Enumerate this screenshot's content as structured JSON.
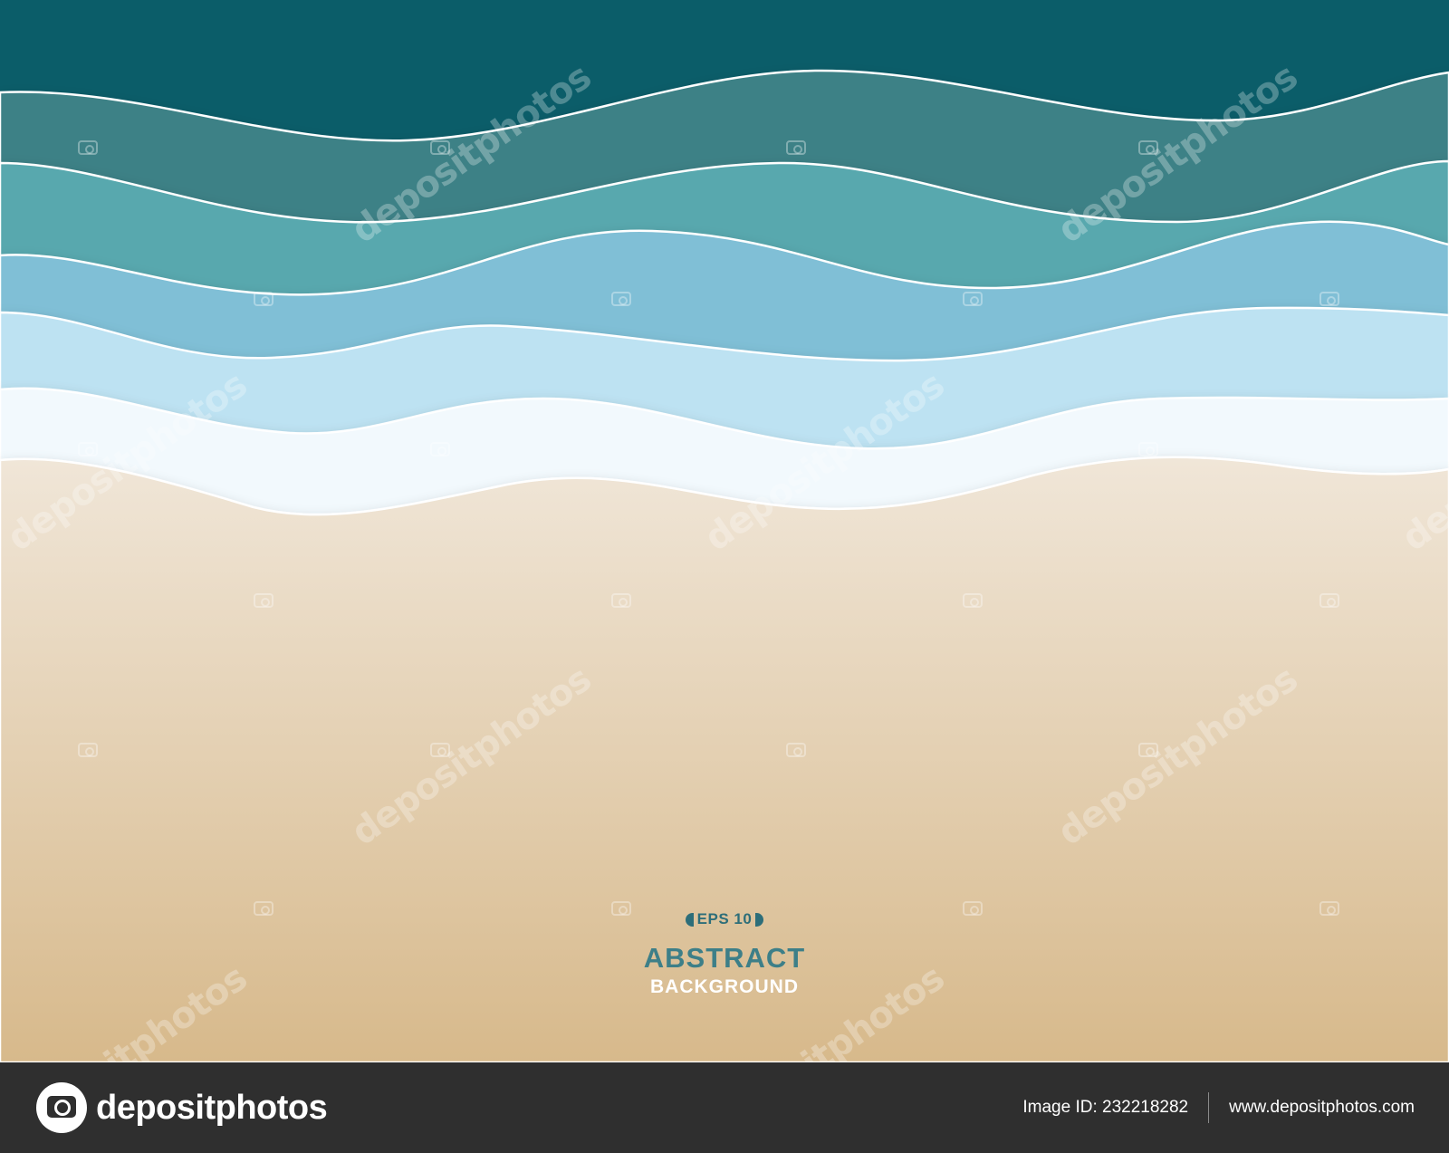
{
  "artwork": {
    "caption": {
      "badge": "EPS 10",
      "title": "ABSTRACT",
      "subtitle": "BACKGROUND"
    },
    "watermark_text": "depositphotos",
    "colors": {
      "deep_sea": "#0b5d69",
      "band_2": "#3e8186",
      "band_3": "#58a8ae",
      "band_4": "#80bfd6",
      "band_5": "#bde2f2",
      "foam": "#f2f9fd",
      "sand_top": "#f0e6d8",
      "sand_bottom": "#d7b98b",
      "caption_accent": "#2d6e79"
    }
  },
  "footer": {
    "brand_name": "depositphotos",
    "image_id": "Image ID: 232218282",
    "site_url": "www.depositphotos.com"
  }
}
